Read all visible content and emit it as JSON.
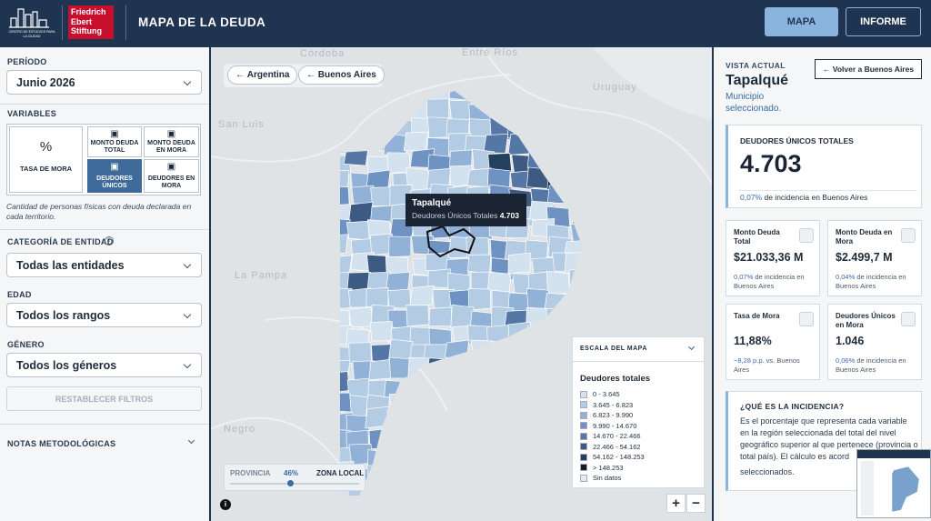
{
  "header": {
    "logo_caption": "CENTRO DE ESTUDIOS PARA LA CIUDAD",
    "brand": [
      "Friedrich",
      "Ebert",
      "Stiftung"
    ],
    "title": "MAPA DE LA DEUDA",
    "nav": [
      "MAPA",
      "INFORME"
    ]
  },
  "filters": {
    "period": {
      "label": "PERÍODO",
      "value": "Junio 2026"
    },
    "variables": {
      "label": "VARIABLES",
      "options": [
        "TASA DE MORA",
        "MONTO DEUDA TOTAL",
        "MONTO DEUDA EN MORA",
        "DEUDORES ÚNICOS",
        "DEUDORES EN MORA"
      ],
      "description": "Cantidad de personas físicas con deuda declarada en cada territorio."
    },
    "category": {
      "label": "CATEGORÍA DE ENTIDAD",
      "value": "Todas las entidades"
    },
    "age": {
      "label": "EDAD",
      "value": "Todos los rangos"
    },
    "gender": {
      "label": "GÉNERO",
      "value": "Todos los géneros"
    },
    "reset": "RESTABLECER FILTROS",
    "notes": "NOTAS METODOLÓGICAS"
  },
  "map": {
    "breadcrumbs": [
      "Argentina",
      "Buenos Aires"
    ],
    "place_labels": [
      "Córdoba",
      "Entre Ríos",
      "Uruguay",
      "San Luis",
      "La Pampa",
      "Negro"
    ],
    "tooltip": {
      "name": "Tapalqué",
      "label": "Deudores Únicos Totales",
      "value": "4.703"
    },
    "legend": {
      "header": "ESCALA DEL MAPA",
      "title": "Deudores totales",
      "items": [
        {
          "label": "0 - 3.645",
          "color": "#d4e1ee"
        },
        {
          "label": "3.645 - 6.823",
          "color": "#b3cbe3"
        },
        {
          "label": "6.823 - 9.990",
          "color": "#91b1d6"
        },
        {
          "label": "9.990 - 14.670",
          "color": "#6e93c3"
        },
        {
          "label": "14.670 - 22.466",
          "color": "#5577a6"
        },
        {
          "label": "22.466 - 54.162",
          "color": "#3d5a82"
        },
        {
          "label": "54.162 - 148.253",
          "color": "#25405f"
        },
        {
          "label": "> 148.253",
          "color": "#121e2e"
        },
        {
          "label": "Sin datos",
          "color": "#e6eaee"
        }
      ]
    },
    "slider": {
      "left": "PROVINCIA",
      "value": "46%",
      "right": "ZONA LOCAL"
    },
    "zoom": [
      "+",
      "−"
    ]
  },
  "detail": {
    "eyebrow": "VISTA ACTUAL",
    "back": "Volver a Buenos Aires",
    "name": "Tapalqué",
    "subtitle": "Municipio seleccionado.",
    "main": {
      "label": "DEUDORES ÚNICOS TOTALES",
      "value": "4.703",
      "share": "0,07%",
      "note": "de incidencia en Buenos Aires"
    },
    "cards": [
      {
        "label": "Monto Deuda Total",
        "value": "$21.033,36 M",
        "share": "0,07%",
        "note": "de incidencia en Buenos Aires"
      },
      {
        "label": "Monto Deuda en Mora",
        "value": "$2.499,7 M",
        "share": "0,04%",
        "note": "de incidencia en Buenos Aires"
      },
      {
        "label": "Tasa de Mora",
        "value": "11,88%",
        "share": "−8,28 p.p.",
        "note": "vs. Buenos Aires"
      },
      {
        "label": "Deudores Únicos en Mora",
        "value": "1.046",
        "share": "0,06%",
        "note": "de incidencia en Buenos Aires"
      }
    ],
    "info": {
      "title": "¿QUÉ ES LA INCIDENCIA?",
      "text": "Es el porcentaje que representa cada variable en la región seleccionada del total del nivel geográfico superior al que pertenece (provincia o total país). El cálculo es acord",
      "tail": "seleccionados."
    }
  }
}
